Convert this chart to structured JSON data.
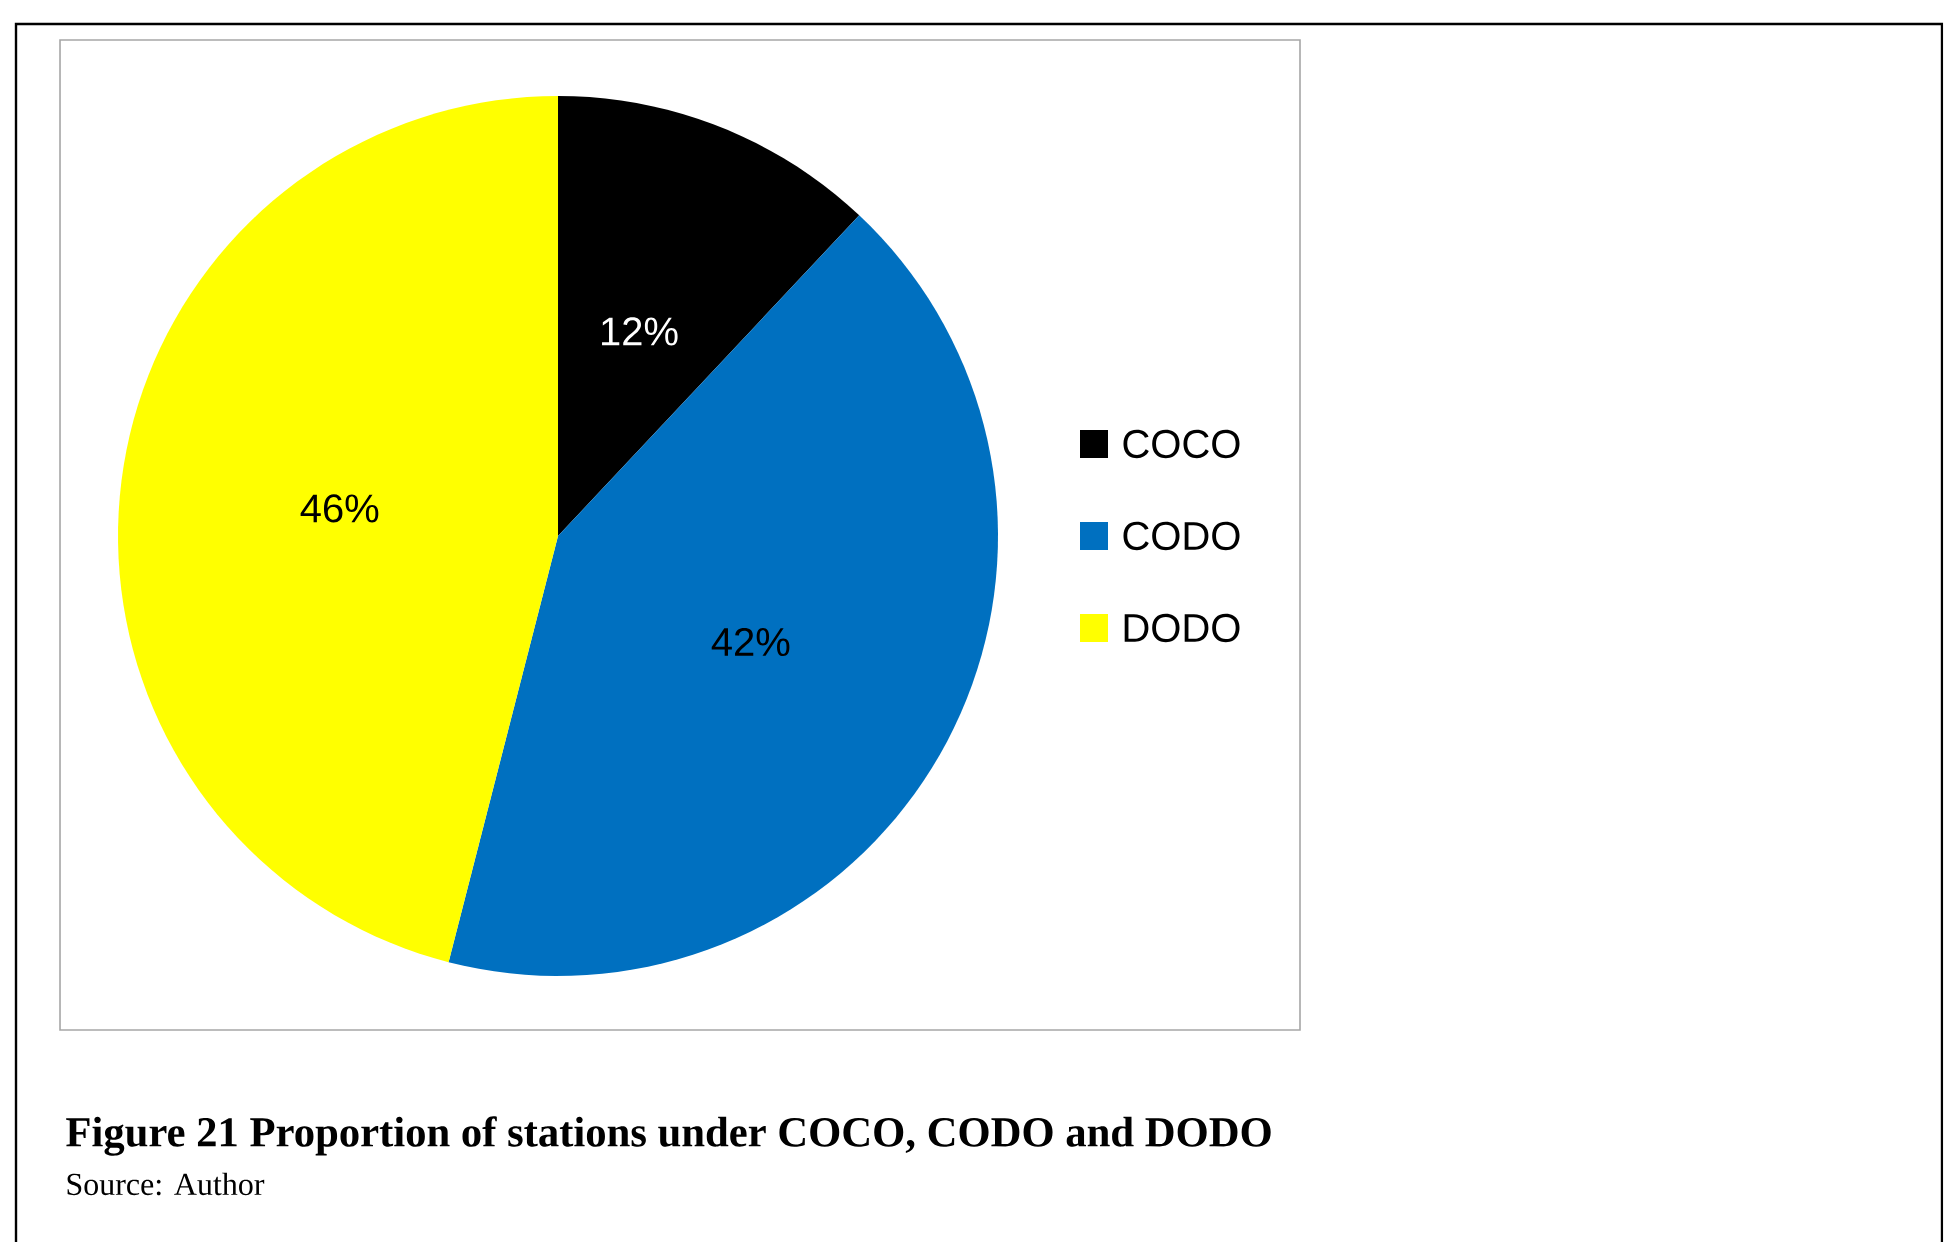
{
  "chart_data": {
    "type": "pie",
    "title": "Figure 21 Proportion of stations under COCO, CODO and DODO",
    "annotations": [
      "Source: Author"
    ],
    "categories": [
      "COCO",
      "CODO",
      "DODO"
    ],
    "values": [
      12,
      42,
      46
    ],
    "value_labels": [
      "12%",
      "42%",
      "46%"
    ],
    "colors": [
      "#000000",
      "#0070c0",
      "#ffff00"
    ],
    "legend": "right"
  }
}
